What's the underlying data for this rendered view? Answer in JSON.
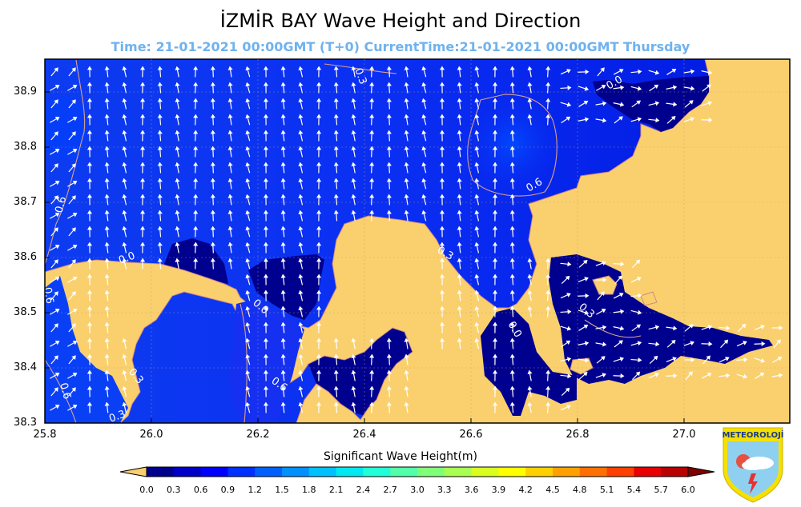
{
  "title": "İZMİR BAY Wave Height and Direction",
  "subtitle": "Time: 21-01-2021 00:00GMT (T+0)  CurrentTime:21-01-2021 00:00GMT Thursday",
  "map": {
    "lon_ticks": [
      "25.8",
      "26.0",
      "26.2",
      "26.4",
      "26.6",
      "26.8",
      "27.0"
    ],
    "lat_ticks": [
      "38.9",
      "38.8",
      "38.7",
      "38.6",
      "38.5",
      "38.4",
      "38.3"
    ],
    "lon_range": [
      25.8,
      27.15
    ],
    "lat_range": [
      38.3,
      38.96
    ],
    "land_color": "#fad06e",
    "contour_labels": [
      "0.3",
      "0.0",
      "0.6",
      "0.3",
      "0.6",
      "0.0",
      "0.6",
      "0.0",
      "0.3",
      "0.6",
      "0.3",
      "0.3",
      "0.6",
      "0.0",
      "0.6",
      "0.0"
    ]
  },
  "colorbar": {
    "label": "Significant Wave Height(m)",
    "ticks": [
      "0.0",
      "0.3",
      "0.6",
      "0.9",
      "1.2",
      "1.5",
      "1.8",
      "2.1",
      "2.4",
      "2.7",
      "3.0",
      "3.3",
      "3.6",
      "3.9",
      "4.2",
      "4.5",
      "4.8",
      "5.1",
      "5.4",
      "5.7",
      "6.0"
    ],
    "colors": [
      "#00008f",
      "#0000c8",
      "#0000ff",
      "#0030ff",
      "#0060ff",
      "#0090ff",
      "#00c0ff",
      "#00e8f0",
      "#20ffd8",
      "#50ffa8",
      "#80ff78",
      "#a8ff50",
      "#d8ff20",
      "#ffff00",
      "#ffd000",
      "#ffa000",
      "#ff7000",
      "#ff4000",
      "#e80000",
      "#b80000"
    ],
    "under_color": "#fad06e",
    "over_color": "#800000"
  },
  "logo": {
    "text": "METEOROLOJİ",
    "icon": "meteoroloji-logo-icon"
  }
}
